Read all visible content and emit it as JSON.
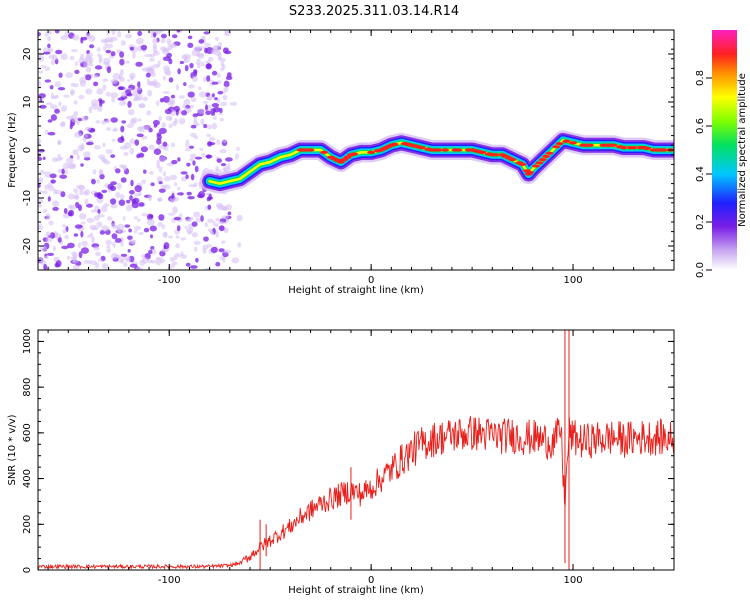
{
  "title": "S233.2025.311.03.14.R14",
  "colors": {
    "trace": "#e8201c",
    "speckle": "#7a1fe6",
    "speckle_light": "#d6bdf5"
  },
  "chart_data": [
    {
      "type": "heatmap",
      "name": "spectrogram",
      "xlabel": "Height of straight line (km)",
      "ylabel": "Frequency (Hz)",
      "xlim": [
        -165,
        150
      ],
      "ylim": [
        -25,
        25
      ],
      "xticks": [
        -100,
        0,
        100
      ],
      "yticks": [
        20,
        10,
        0,
        -10,
        -20
      ],
      "noise_region_x": [
        -165,
        -70
      ],
      "ridge": {
        "x": [
          -80,
          -75,
          -70,
          -65,
          -60,
          -55,
          -50,
          -45,
          -40,
          -35,
          -30,
          -25,
          -20,
          -15,
          -10,
          -5,
          0,
          5,
          10,
          15,
          20,
          25,
          30,
          35,
          40,
          45,
          50,
          55,
          60,
          65,
          70,
          75,
          78,
          80,
          85,
          90,
          95,
          100,
          105,
          110,
          115,
          120,
          125,
          130,
          135,
          140,
          145,
          150
        ],
        "freq": [
          -6.5,
          -7,
          -6.5,
          -6,
          -4.5,
          -3,
          -2.5,
          -1.5,
          -1,
          0,
          0,
          0,
          -1.5,
          -2.5,
          -1,
          -0.5,
          -0.5,
          0,
          1,
          1.5,
          1,
          0.5,
          0,
          0,
          0,
          0,
          0,
          -0.5,
          -1,
          -1,
          -2,
          -3,
          -5,
          -4,
          -2,
          0,
          2,
          1.5,
          1,
          1,
          1,
          1,
          0.5,
          0.5,
          0.5,
          0,
          0,
          0
        ]
      },
      "colorbar": {
        "label": "Normalized spectral amplitude",
        "ticks": [
          "0.0",
          "0.2",
          "0.4",
          "0.6",
          "0.8"
        ],
        "range": [
          0,
          1
        ]
      }
    },
    {
      "type": "line",
      "name": "snr",
      "xlabel": "Height of straight line (km)",
      "ylabel": "SNR (10 * v/v)",
      "xlim": [
        -165,
        150
      ],
      "ylim": [
        0,
        1050
      ],
      "xticks": [
        -100,
        0,
        100
      ],
      "yticks": [
        "0",
        "200",
        "400",
        "600",
        "800",
        "1000"
      ],
      "series": [
        {
          "name": "SNR",
          "x": [
            -165,
            -140,
            -120,
            -100,
            -80,
            -70,
            -65,
            -60,
            -55,
            -50,
            -45,
            -40,
            -35,
            -30,
            -25,
            -20,
            -15,
            -10,
            -5,
            0,
            5,
            10,
            15,
            20,
            25,
            30,
            35,
            40,
            45,
            50,
            55,
            60,
            65,
            70,
            75,
            80,
            85,
            90,
            92,
            94,
            95,
            96,
            98,
            100,
            105,
            110,
            115,
            120,
            125,
            130,
            135,
            140,
            145,
            150
          ],
          "values": [
            15,
            15,
            15,
            15,
            15,
            20,
            30,
            60,
            100,
            130,
            160,
            190,
            230,
            260,
            290,
            310,
            330,
            350,
            330,
            360,
            400,
            440,
            480,
            520,
            550,
            570,
            580,
            590,
            595,
            600,
            595,
            590,
            585,
            590,
            580,
            580,
            570,
            560,
            580,
            620,
            420,
            300,
            600,
            580,
            560,
            570,
            575,
            580,
            570,
            575,
            580,
            580,
            580,
            570
          ],
          "spikes": [
            {
              "x": -55,
              "values": [
                0,
                220
              ]
            },
            {
              "x": -52,
              "values": [
                60,
                200
              ]
            },
            {
              "x": -10,
              "values": [
                220,
                450
              ]
            },
            {
              "x": 96,
              "values": [
                30,
                1050
              ]
            },
            {
              "x": 98,
              "values": [
                0,
                1050
              ]
            }
          ]
        }
      ]
    }
  ]
}
